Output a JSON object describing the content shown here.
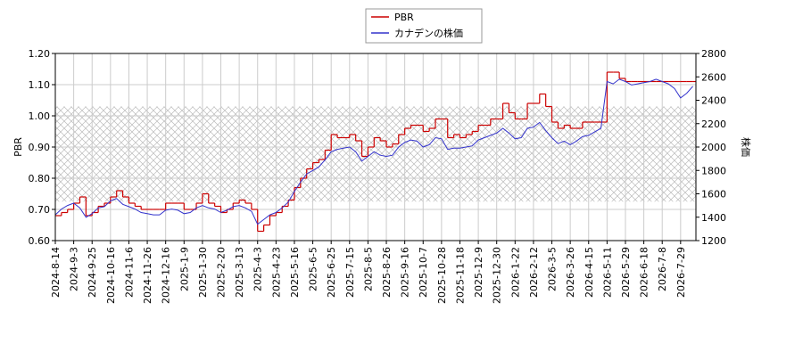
{
  "chart_data": {
    "type": "line",
    "x": [
      "2024-8-14",
      null,
      null,
      "2024-9-3",
      null,
      null,
      "2024-9-25",
      null,
      null,
      "2024-10-16",
      null,
      null,
      "2024-11-6",
      null,
      null,
      "2024-11-26",
      null,
      null,
      "2024-12-16",
      null,
      null,
      "2025-1-9",
      null,
      null,
      "2025-1-30",
      null,
      null,
      "2025-2-20",
      null,
      null,
      "2025-3-13",
      null,
      null,
      "2025-4-3",
      null,
      null,
      "2025-4-23",
      null,
      null,
      "2025-5-16",
      null,
      null,
      "2025-6-5",
      null,
      null,
      "2025-6-25",
      null,
      null,
      "2025-7-15",
      null,
      null,
      "2025-8-5",
      null,
      null,
      "2025-8-26",
      null,
      null,
      "2025-9-16",
      null,
      null,
      "2025-10-7",
      null,
      null,
      "2025-10-28",
      null,
      null,
      "2025-11-18",
      null,
      null,
      "2025-12-9",
      null,
      null,
      "2025-12-30",
      null,
      null,
      "2026-1-22",
      null,
      null,
      "2026-2-12",
      null,
      null,
      "2026-3-5",
      null,
      null,
      "2026-3-26",
      null,
      null,
      "2026-4-15",
      null,
      null,
      "2026-5-11",
      null,
      null,
      "2026-5-29",
      null,
      null,
      "2026-6-18",
      null,
      null,
      "2026-7-8",
      null,
      null,
      "2026-7-29",
      null,
      null
    ],
    "series": [
      {
        "name": "PBR",
        "color": "#cc0000",
        "axis": "y",
        "step": true,
        "values": [
          0.68,
          0.69,
          0.7,
          0.72,
          0.74,
          0.68,
          0.69,
          0.71,
          0.72,
          0.74,
          0.76,
          0.74,
          0.72,
          0.71,
          0.7,
          0.7,
          0.7,
          0.7,
          0.72,
          0.72,
          0.72,
          0.7,
          0.7,
          0.72,
          0.75,
          0.72,
          0.71,
          0.69,
          0.7,
          0.72,
          0.73,
          0.72,
          0.7,
          0.63,
          0.65,
          0.68,
          0.69,
          0.71,
          0.73,
          0.77,
          0.8,
          0.83,
          0.85,
          0.86,
          0.89,
          0.94,
          0.93,
          0.93,
          0.94,
          0.92,
          0.87,
          0.9,
          0.93,
          0.92,
          0.9,
          0.91,
          0.94,
          0.96,
          0.97,
          0.97,
          0.95,
          0.96,
          0.99,
          0.99,
          0.93,
          0.94,
          0.93,
          0.94,
          0.95,
          0.97,
          0.97,
          0.99,
          0.99,
          1.04,
          1.01,
          0.99,
          0.99,
          1.04,
          1.04,
          1.07,
          1.03,
          0.98,
          0.96,
          0.97,
          0.96,
          0.96,
          0.98,
          0.98,
          0.98,
          0.98,
          1.14,
          1.14,
          1.12,
          1.11,
          1.11,
          1.11,
          1.11,
          1.11,
          1.11,
          1.11,
          1.11,
          1.11,
          1.11,
          1.11,
          1.11
        ]
      },
      {
        "name": "カナデンの株価",
        "color": "#3333cc",
        "axis": "y2",
        "values": [
          1420,
          1470,
          1500,
          1520,
          1480,
          1400,
          1430,
          1480,
          1490,
          1540,
          1560,
          1510,
          1490,
          1470,
          1440,
          1430,
          1420,
          1420,
          1460,
          1470,
          1460,
          1430,
          1440,
          1480,
          1500,
          1480,
          1470,
          1440,
          1460,
          1490,
          1500,
          1480,
          1450,
          1340,
          1380,
          1420,
          1440,
          1480,
          1530,
          1620,
          1700,
          1770,
          1800,
          1830,
          1890,
          1960,
          1980,
          1990,
          2000,
          1960,
          1880,
          1920,
          1960,
          1930,
          1920,
          1930,
          2000,
          2040,
          2060,
          2050,
          2000,
          2020,
          2080,
          2070,
          1980,
          1990,
          1990,
          2000,
          2010,
          2060,
          2080,
          2100,
          2120,
          2160,
          2120,
          2070,
          2080,
          2160,
          2170,
          2210,
          2140,
          2080,
          2030,
          2050,
          2020,
          2050,
          2090,
          2100,
          2130,
          2160,
          2560,
          2540,
          2580,
          2560,
          2530,
          2540,
          2550,
          2560,
          2580,
          2560,
          2540,
          2500,
          2420,
          2460,
          2520
        ]
      }
    ],
    "ylabel": "PBR",
    "y2label": "株価",
    "ylim": [
      0.6,
      1.2
    ],
    "yticks": [
      {
        "value": 0.6,
        "label": "0.60"
      },
      {
        "value": 0.7,
        "label": "0.70"
      },
      {
        "value": 0.8,
        "label": "0.80"
      },
      {
        "value": 0.9,
        "label": "0.90"
      },
      {
        "value": 1.0,
        "label": "1.00"
      },
      {
        "value": 1.1,
        "label": "1.10"
      },
      {
        "value": 1.2,
        "label": "1.20"
      }
    ],
    "y2lim": [
      1200,
      2800
    ],
    "y2ticks": [
      1200,
      1400,
      1600,
      1800,
      2000,
      2200,
      2400,
      2600,
      2800
    ],
    "shaded_range": [
      0.725,
      1.03
    ],
    "grid": true,
    "legend": "top"
  }
}
